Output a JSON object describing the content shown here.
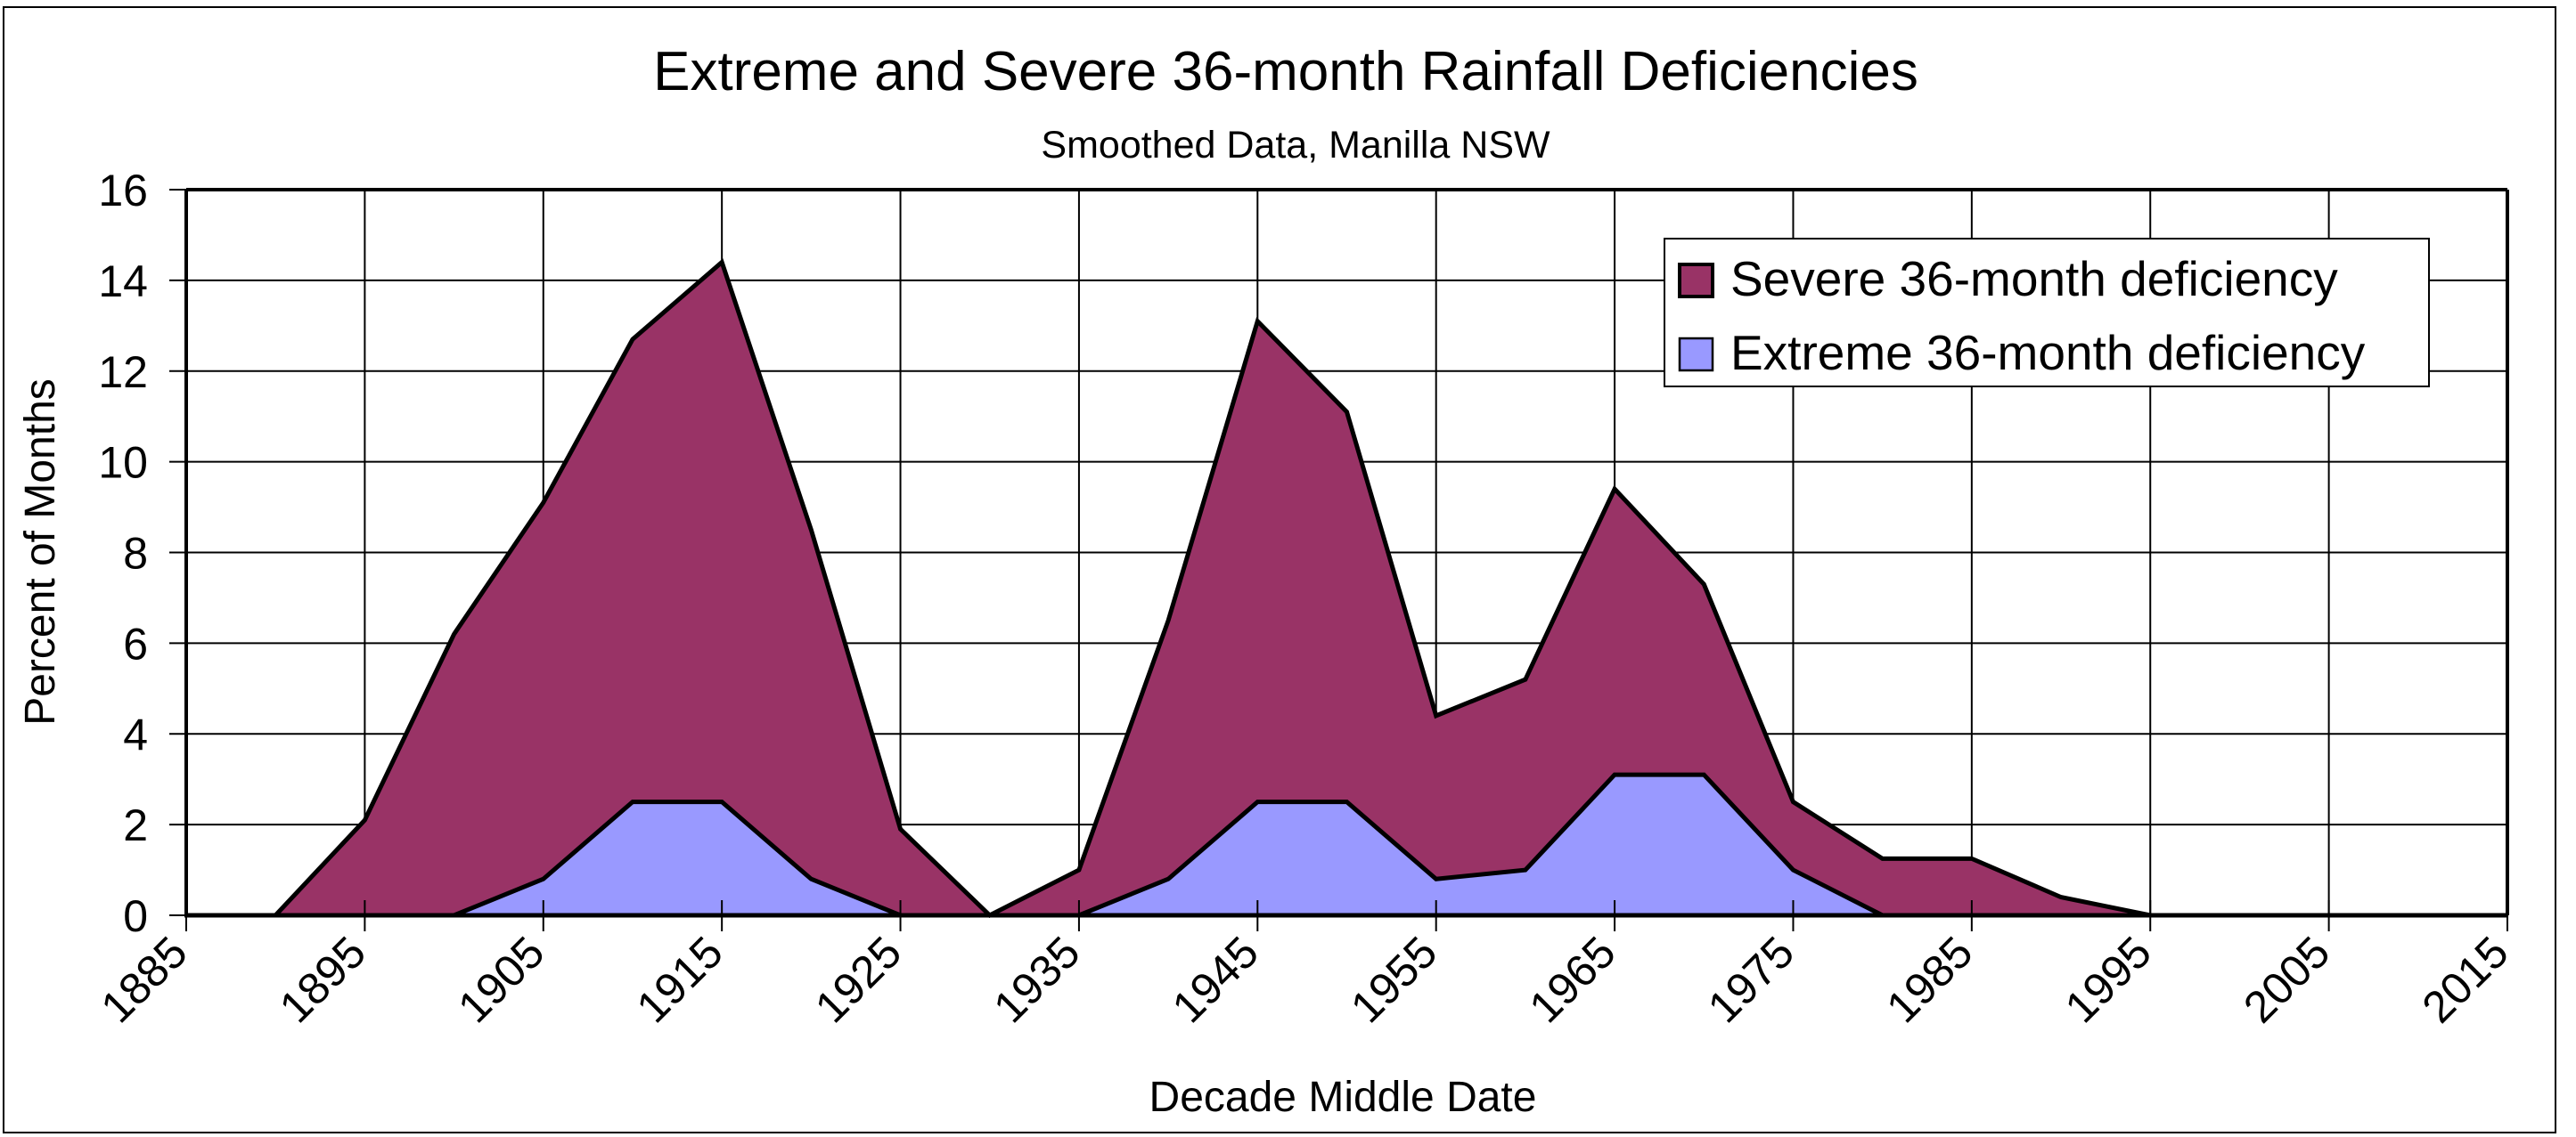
{
  "chart_data": {
    "type": "area",
    "stacked": false,
    "title": "Extreme and Severe 36-month Rainfall Deficiencies",
    "subtitle": "Smoothed Data, Manilla NSW",
    "xlabel": "Decade Middle Date",
    "ylabel": "Percent of Months",
    "xlim": [
      1885,
      2015
    ],
    "ylim": [
      0,
      16
    ],
    "x_ticks": [
      "1885",
      "1895",
      "1905",
      "1915",
      "1925",
      "1935",
      "1945",
      "1955",
      "1965",
      "1975",
      "1985",
      "1995",
      "2005",
      "2015"
    ],
    "y_ticks": [
      "0",
      "2",
      "4",
      "6",
      "8",
      "10",
      "12",
      "14",
      "16"
    ],
    "grid": true,
    "legend_position": "top-right",
    "x": [
      1885,
      1890,
      1895,
      1900,
      1905,
      1910,
      1915,
      1920,
      1925,
      1930,
      1935,
      1940,
      1945,
      1950,
      1955,
      1960,
      1965,
      1970,
      1975,
      1980,
      1985,
      1990,
      1995,
      2000,
      2005,
      2010,
      2015
    ],
    "series": [
      {
        "name": "Severe 36-month deficiency",
        "color": "#993366",
        "values": [
          0,
          0,
          2.1,
          6.2,
          9.1,
          12.7,
          14.4,
          8.5,
          1.9,
          0,
          1.0,
          6.5,
          13.1,
          11.1,
          4.4,
          5.2,
          9.4,
          7.3,
          2.5,
          1.25,
          1.25,
          0.4,
          0,
          0,
          0,
          0,
          0
        ]
      },
      {
        "name": "Extreme 36-month deficiency",
        "color": "#9999FF",
        "values": [
          0,
          0,
          0,
          0,
          0.8,
          2.5,
          2.5,
          0.8,
          0,
          0,
          0,
          0.8,
          2.5,
          2.5,
          0.8,
          1.0,
          3.1,
          3.1,
          1.0,
          0,
          0,
          0,
          0,
          0,
          0,
          0,
          0
        ]
      }
    ]
  }
}
